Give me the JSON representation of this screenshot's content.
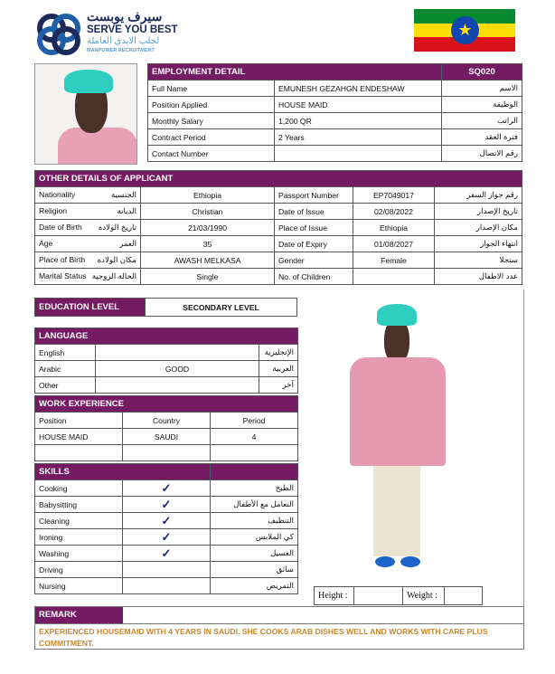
{
  "logo": {
    "arabic": "سيرف يوبست",
    "name": "SERVE YOU BEST",
    "arabic_sub": "لجلب الايدي العاملة",
    "sub": "MANPOWER RECRUITMENT"
  },
  "flag": {
    "country": "Ethiopia",
    "colors": [
      "#078930",
      "#fcdd09",
      "#da121a"
    ],
    "emblem": "#0f47af"
  },
  "colors": {
    "accent": "#741b63",
    "remark": "#c8862a",
    "check": "#1a1f7a"
  },
  "employment": {
    "title": "EMPLOYMENT DETAIL",
    "code": "SQ020",
    "rows": [
      {
        "label": "Full Name",
        "value": "EMUNESH GEZAHGN ENDESHAW",
        "ar": "الاسم"
      },
      {
        "label": "Position Applied",
        "value": "HOUSE MAID",
        "ar": "الوظيفة"
      },
      {
        "label": "Monthly Salary",
        "value": "1,200  QR",
        "ar": "الراتب"
      },
      {
        "label": "Contract Period",
        "value": "2 Years",
        "ar": "فترة العقد"
      },
      {
        "label": "Contact Number",
        "value": "",
        "ar": "رقم الاتصال"
      }
    ]
  },
  "other": {
    "title": "OTHER DETAILS OF APPLICANT",
    "rows": [
      {
        "label": "Nationality",
        "ar": "الجنسية",
        "value": "Ethiopia",
        "label2": "Passport Number",
        "value2": "EP7049017",
        "ar2": "رقم جواز السفر"
      },
      {
        "label": "Religion",
        "ar": "الديانة",
        "value": "Christian",
        "label2": "Date of Issue",
        "value2": "02/08/2022",
        "ar2": "تاريخ الإصدار"
      },
      {
        "label": "Date of Birth",
        "ar": "تاريخ الولادة",
        "value": "21/03/1990",
        "label2": "Place of Issue",
        "value2": "Ethiopia",
        "ar2": "مكان الإصدار"
      },
      {
        "label": "Age",
        "ar": "العمر",
        "value": "35",
        "label2": "Date of Expiry",
        "value2": "01/08/2027",
        "ar2": "انتهاء الجواز"
      },
      {
        "label": "Place of Birth",
        "ar": "مكان الولادة",
        "value": "AWASH MELKASA",
        "label2": "Gender",
        "value2": "Female",
        "ar2": "ستجلا"
      },
      {
        "label": "Marital Status",
        "ar": "الحالة الزوجية",
        "value": "Single",
        "label2": "No. of Children",
        "value2": "",
        "ar2": "عدد الاطفال"
      }
    ]
  },
  "education": {
    "label": "EDUCATION LEVEL",
    "value": "SECONDARY LEVEL"
  },
  "language": {
    "title": "LANGUAGE",
    "rows": [
      {
        "label": "English",
        "value": "",
        "ar": "الإنجليزية"
      },
      {
        "label": "Arabic",
        "value": "GOOD",
        "ar": "العربية"
      },
      {
        "label": "Other",
        "value": "",
        "ar": "آخر"
      }
    ]
  },
  "work": {
    "title": "WORK EXPERIENCE",
    "headers": [
      "Position",
      "Country",
      "Period"
    ],
    "rows": [
      [
        "HOUSE MAID",
        "SAUDI",
        "4"
      ],
      [
        "",
        "",
        ""
      ]
    ]
  },
  "skills": {
    "title": "SKILLS",
    "check": "✓",
    "rows": [
      {
        "label": "Cooking",
        "checked": true,
        "ar": "الطبخ"
      },
      {
        "label": "Babysitting",
        "checked": true,
        "ar": "التعامل مع الأطفال"
      },
      {
        "label": "Cleaning",
        "checked": true,
        "ar": "التنظيف"
      },
      {
        "label": "Ironing",
        "checked": true,
        "ar": "كي الملابس"
      },
      {
        "label": "Washing",
        "checked": true,
        "ar": "الغسيل"
      },
      {
        "label": "Driving",
        "checked": false,
        "ar": "سائق"
      },
      {
        "label": "Nursing",
        "checked": false,
        "ar": "التمريض"
      }
    ]
  },
  "measures": {
    "height_label": "Height :",
    "height": "",
    "weight_label": "Weight :",
    "weight": ""
  },
  "remark": {
    "title": "REMARK",
    "text": "EXPERIENCED HOUSEMAID WITH 4 YEARS IN SAUDI. SHE COOKS ARAB DISHES WELL  AND WORKS WITH CARE PLUS COMMITMENT."
  }
}
